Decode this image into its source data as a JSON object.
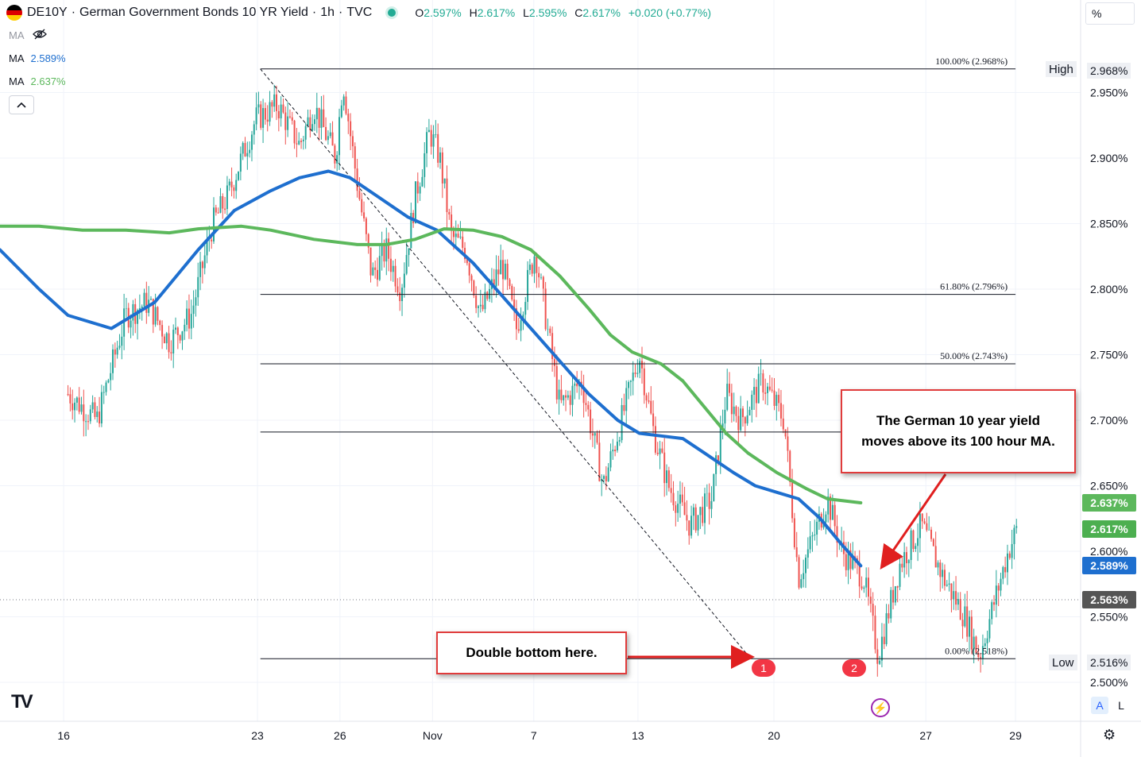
{
  "header": {
    "symbol": "DE10Y",
    "title": "German Government Bonds 10 YR Yield",
    "interval": "1h",
    "source": "TVC",
    "sep": "·",
    "ohlc": {
      "o_label": "O",
      "o": "2.597%",
      "h_label": "H",
      "h": "2.617%",
      "l_label": "L",
      "l": "2.595%",
      "c_label": "C",
      "c": "2.617%",
      "change": "+0.020 (+0.77%)"
    }
  },
  "indicators": [
    {
      "label": "MA",
      "value": "",
      "hidden": true,
      "icon": "eye-off-icon"
    },
    {
      "label": "MA",
      "value": "2.589%",
      "color": "#1e6fcf"
    },
    {
      "label": "MA",
      "value": "2.637%",
      "color": "#5cb85c"
    }
  ],
  "scale_mode": "%",
  "buttons": {
    "auto": "A",
    "log": "L"
  },
  "chart_data": {
    "type": "candlestick",
    "title": "German Government Bonds 10 YR Yield",
    "x_ticks": [
      "16",
      "23",
      "26",
      "Nov",
      "7",
      "13",
      "20",
      "27",
      "29"
    ],
    "y_ticks": [
      "2.500%",
      "2.550%",
      "2.600%",
      "2.650%",
      "2.700%",
      "2.750%",
      "2.800%",
      "2.850%",
      "2.900%",
      "2.950%"
    ],
    "y_range": [
      2.48,
      3.0
    ],
    "grid": true,
    "price_path": [
      [
        0,
        2.72
      ],
      [
        2,
        2.7
      ],
      [
        4,
        2.78
      ],
      [
        5.5,
        2.79
      ],
      [
        7,
        2.76
      ],
      [
        8.5,
        2.78
      ],
      [
        10,
        2.85
      ],
      [
        11,
        2.87
      ],
      [
        13,
        2.93
      ],
      [
        14.5,
        2.94
      ],
      [
        16,
        2.91
      ],
      [
        17,
        2.94
      ],
      [
        18.5,
        2.9
      ],
      [
        19,
        2.96
      ],
      [
        20,
        2.88
      ],
      [
        21,
        2.81
      ],
      [
        22,
        2.83
      ],
      [
        23,
        2.8
      ],
      [
        24,
        2.87
      ],
      [
        25,
        2.92
      ],
      [
        25.7,
        2.9
      ],
      [
        26.5,
        2.84
      ],
      [
        27.5,
        2.83
      ],
      [
        28.5,
        2.78
      ],
      [
        30,
        2.82
      ],
      [
        31,
        2.77
      ],
      [
        32.3,
        2.83
      ],
      [
        33,
        2.78
      ],
      [
        34,
        2.71
      ],
      [
        35.5,
        2.73
      ],
      [
        37,
        2.65
      ],
      [
        38,
        2.69
      ],
      [
        39.5,
        2.75
      ],
      [
        40.5,
        2.69
      ],
      [
        41.5,
        2.65
      ],
      [
        43,
        2.62
      ],
      [
        44.5,
        2.64
      ],
      [
        45.5,
        2.72
      ],
      [
        46.5,
        2.7
      ],
      [
        48,
        2.73
      ],
      [
        49.5,
        2.7
      ],
      [
        50.5,
        2.58
      ],
      [
        51.5,
        2.61
      ],
      [
        52.5,
        2.64
      ],
      [
        53.5,
        2.6
      ],
      [
        55,
        2.58
      ],
      [
        56,
        2.52
      ],
      [
        57.5,
        2.59
      ],
      [
        59,
        2.62
      ],
      [
        60.5,
        2.58
      ],
      [
        62,
        2.55
      ],
      [
        63,
        2.52
      ],
      [
        64,
        2.56
      ],
      [
        65,
        2.6
      ],
      [
        65.6,
        2.617
      ]
    ],
    "x_range": [
      -4.7,
      70
    ],
    "tick_positions": [
      -0.3,
      13.1,
      18.8,
      25.2,
      32.2,
      39.4,
      48.8,
      59.3,
      65.5
    ],
    "series": [
      {
        "name": "MA",
        "value": 2.589,
        "color": "#1e6fcf",
        "points": [
          [
            -4.7,
            2.83
          ],
          [
            -2,
            2.8
          ],
          [
            0,
            2.78
          ],
          [
            3,
            2.77
          ],
          [
            6,
            2.79
          ],
          [
            9,
            2.83
          ],
          [
            11.5,
            2.86
          ],
          [
            14,
            2.875
          ],
          [
            16,
            2.885
          ],
          [
            18,
            2.89
          ],
          [
            19.5,
            2.885
          ],
          [
            21.5,
            2.87
          ],
          [
            23.5,
            2.855
          ],
          [
            25.5,
            2.845
          ],
          [
            28,
            2.82
          ],
          [
            30,
            2.795
          ],
          [
            32,
            2.77
          ],
          [
            34,
            2.745
          ],
          [
            36,
            2.72
          ],
          [
            38,
            2.7
          ],
          [
            39.5,
            2.69
          ],
          [
            41,
            2.688
          ],
          [
            42.5,
            2.686
          ],
          [
            44,
            2.675
          ],
          [
            46,
            2.66
          ],
          [
            47.5,
            2.65
          ],
          [
            49,
            2.645
          ],
          [
            50.5,
            2.64
          ],
          [
            52,
            2.625
          ],
          [
            53.5,
            2.605
          ],
          [
            54.8,
            2.589
          ]
        ]
      },
      {
        "name": "MA",
        "value": 2.637,
        "color": "#5cb85c",
        "points": [
          [
            -4.7,
            2.848
          ],
          [
            -2,
            2.848
          ],
          [
            1,
            2.845
          ],
          [
            4,
            2.845
          ],
          [
            7,
            2.843
          ],
          [
            9,
            2.846
          ],
          [
            12,
            2.848
          ],
          [
            14,
            2.845
          ],
          [
            17,
            2.838
          ],
          [
            20,
            2.834
          ],
          [
            22,
            2.834
          ],
          [
            24,
            2.838
          ],
          [
            26,
            2.846
          ],
          [
            28,
            2.845
          ],
          [
            30,
            2.84
          ],
          [
            32,
            2.83
          ],
          [
            34,
            2.81
          ],
          [
            36,
            2.785
          ],
          [
            37.5,
            2.765
          ],
          [
            39,
            2.752
          ],
          [
            41,
            2.743
          ],
          [
            42.5,
            2.73
          ],
          [
            44,
            2.71
          ],
          [
            45.5,
            2.69
          ],
          [
            47,
            2.675
          ],
          [
            49,
            2.66
          ],
          [
            51,
            2.648
          ],
          [
            52.5,
            2.64
          ],
          [
            54.8,
            2.637
          ]
        ]
      }
    ],
    "fibonacci": {
      "levels": [
        {
          "label": "100.00% (2.968%)",
          "price": 2.968
        },
        {
          "label": "61.80% (2.796%)",
          "price": 2.796
        },
        {
          "label": "50.00% (2.743%)",
          "price": 2.743
        },
        {
          "label": "",
          "price": 2.691
        },
        {
          "label": "0.00% (2.518%)",
          "price": 2.518
        }
      ],
      "x_start": 13.3,
      "x_end": 65.5
    },
    "trendline": {
      "from": [
        13.3,
        2.968
      ],
      "to": [
        47.2,
        2.518
      ]
    },
    "current_price": 2.563
  },
  "price_tags": [
    {
      "value": "2.637%",
      "price": 2.637,
      "color": "#5cb85c"
    },
    {
      "value": "2.617%",
      "price": 2.617,
      "color": "#4caf50"
    },
    {
      "value": "2.589%",
      "price": 2.589,
      "color": "#1e6fcf"
    },
    {
      "value": "2.563%",
      "price": 2.563,
      "color": "#555555"
    }
  ],
  "high": {
    "label": "High",
    "value": "2.968%",
    "price": 2.968
  },
  "low": {
    "label": "Low",
    "value": "2.516%",
    "price": 2.516
  },
  "annotations": {
    "ma_break": "The German 10 year yield moves above its 100 hour MA.",
    "double_bottom": "Double bottom here."
  },
  "markers": [
    "1",
    "2"
  ],
  "logo": "TV",
  "colors": {
    "up": "#26a69a",
    "down": "#ef5350",
    "arrow": "#e01f1f"
  }
}
